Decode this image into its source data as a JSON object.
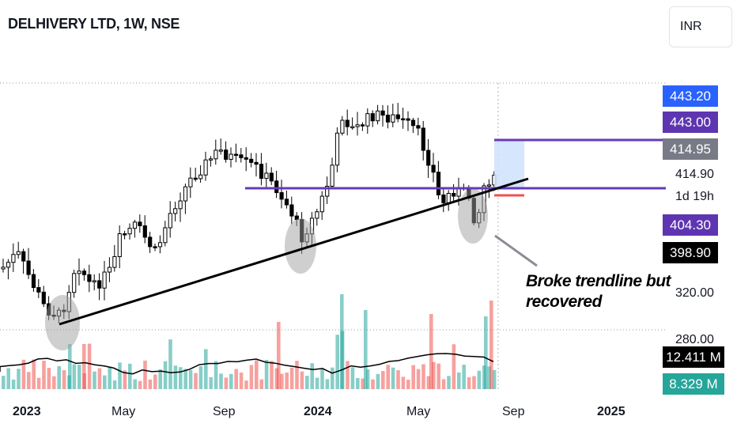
{
  "header": {
    "title": "DELHIVERY LTD, 1W, NSE",
    "currency": "INR"
  },
  "price_scale": {
    "ticks": [
      "414.90",
      "320.00",
      "280.00"
    ],
    "countdown": "1d 19h",
    "badges": [
      {
        "value": "443.20",
        "bg": "#2962ff",
        "fg": "#ffffff"
      },
      {
        "value": "443.00",
        "bg": "#5e35b1",
        "fg": "#ffffff"
      },
      {
        "value": "414.95",
        "bg": "#787b86",
        "fg": "#ffffff"
      },
      {
        "value": "404.30",
        "bg": "#5e35b1",
        "fg": "#ffffff"
      },
      {
        "value": "398.90",
        "bg": "#000000",
        "fg": "#ffffff"
      },
      {
        "value": "12.411 M",
        "bg": "#000000",
        "fg": "#ffffff"
      },
      {
        "value": "8.329 M",
        "bg": "#26a69a",
        "fg": "#ffffff"
      }
    ]
  },
  "time_axis": {
    "labels": [
      {
        "text": "2023",
        "bold": true
      },
      {
        "text": "May",
        "bold": false
      },
      {
        "text": "Sep",
        "bold": false
      },
      {
        "text": "2024",
        "bold": true
      },
      {
        "text": "May",
        "bold": false
      },
      {
        "text": "Sep",
        "bold": false
      },
      {
        "text": "2025",
        "bold": true
      }
    ]
  },
  "annotation": {
    "text": "Broke trendline but recovered"
  },
  "colors": {
    "up": "#26a69a",
    "down": "#ef5350",
    "candle": "#000000",
    "trendline": "#000000",
    "level": "#673ab7",
    "target_zone": "#cfe2fb",
    "stop": "#ef5350"
  },
  "icons": {
    "marker": "ellipse-highlight"
  }
}
